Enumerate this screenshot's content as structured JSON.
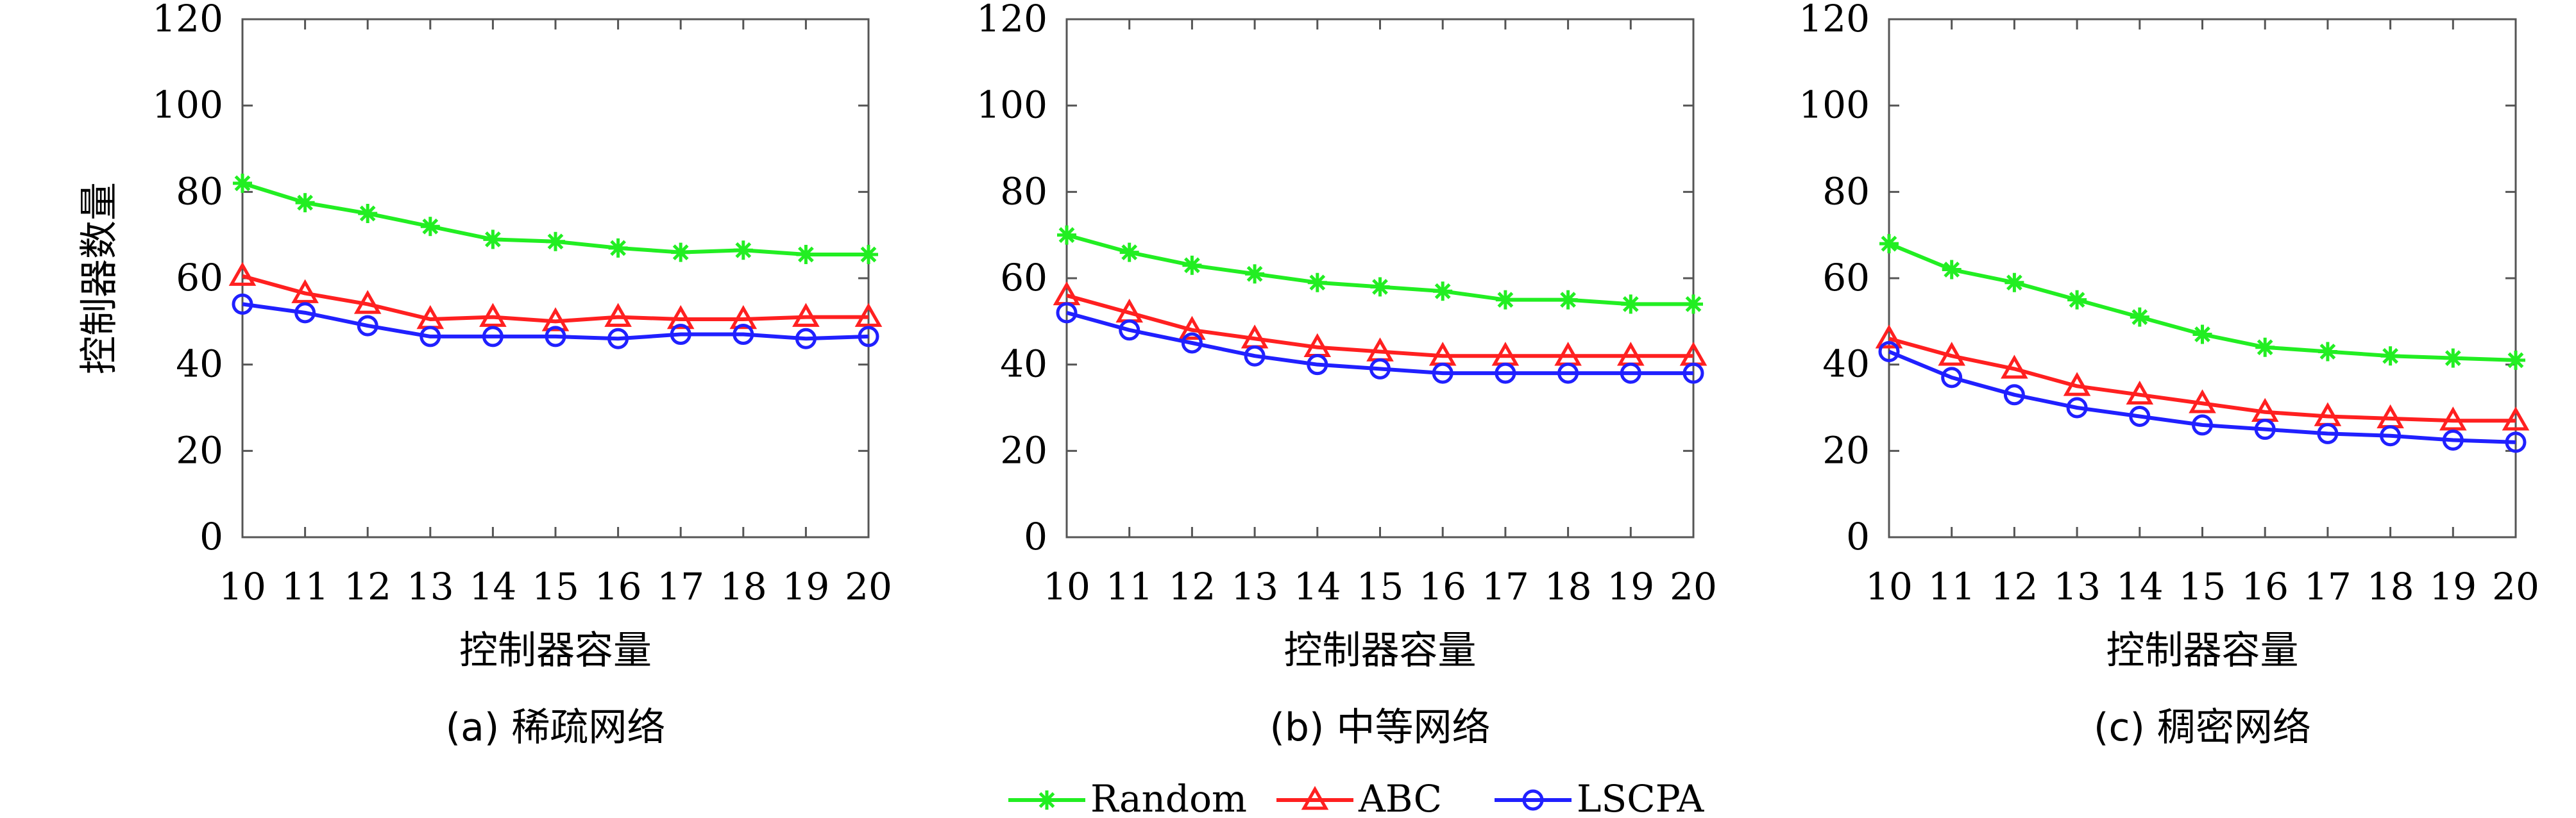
{
  "chart_data": [
    {
      "type": "line",
      "caption": "(a) 稀疏网络",
      "xlabel": "控制器容量",
      "ylabel": "控制器数量",
      "x": [
        10,
        11,
        12,
        13,
        14,
        15,
        16,
        17,
        18,
        19,
        20
      ],
      "ylim": [
        0,
        120
      ],
      "yticks": [
        0,
        20,
        40,
        60,
        80,
        100,
        120
      ],
      "grid": false,
      "series": [
        {
          "name": "Random",
          "color": "#22ee22",
          "marker": "asterisk",
          "values": [
            82,
            77.5,
            75,
            72,
            69,
            68.5,
            67,
            66,
            66.5,
            65.5,
            65.5
          ]
        },
        {
          "name": "ABC",
          "color": "#ff2020",
          "marker": "triangle",
          "values": [
            60.5,
            56.5,
            54,
            50.5,
            51,
            50,
            51,
            50.5,
            50.5,
            51,
            51
          ]
        },
        {
          "name": "LSCPA",
          "color": "#2020ff",
          "marker": "circle",
          "values": [
            54,
            52,
            49,
            46.5,
            46.5,
            46.5,
            46,
            47,
            47,
            46,
            46.5
          ]
        }
      ]
    },
    {
      "type": "line",
      "caption": "(b) 中等网络",
      "xlabel": "控制器容量",
      "ylabel": "",
      "x": [
        10,
        11,
        12,
        13,
        14,
        15,
        16,
        17,
        18,
        19,
        20
      ],
      "ylim": [
        0,
        120
      ],
      "yticks": [
        0,
        20,
        40,
        60,
        80,
        100,
        120
      ],
      "grid": false,
      "series": [
        {
          "name": "Random",
          "color": "#22ee22",
          "marker": "asterisk",
          "values": [
            70,
            66,
            63,
            61,
            59,
            58,
            57,
            55,
            55,
            54,
            54
          ]
        },
        {
          "name": "ABC",
          "color": "#ff2020",
          "marker": "triangle",
          "values": [
            56,
            52,
            48,
            46,
            44,
            43,
            42,
            42,
            42,
            42,
            42
          ]
        },
        {
          "name": "LSCPA",
          "color": "#2020ff",
          "marker": "circle",
          "values": [
            52,
            48,
            45,
            42,
            40,
            39,
            38,
            38,
            38,
            38,
            38
          ]
        }
      ]
    },
    {
      "type": "line",
      "caption": "(c) 稠密网络",
      "xlabel": "控制器容量",
      "ylabel": "",
      "x": [
        10,
        11,
        12,
        13,
        14,
        15,
        16,
        17,
        18,
        19,
        20
      ],
      "ylim": [
        0,
        120
      ],
      "yticks": [
        0,
        20,
        40,
        60,
        80,
        100,
        120
      ],
      "grid": false,
      "series": [
        {
          "name": "Random",
          "color": "#22ee22",
          "marker": "asterisk",
          "values": [
            68,
            62,
            59,
            55,
            51,
            47,
            44,
            43,
            42,
            41.5,
            41
          ]
        },
        {
          "name": "ABC",
          "color": "#ff2020",
          "marker": "triangle",
          "values": [
            46,
            42,
            39,
            35,
            33,
            31,
            29,
            28,
            27.5,
            27,
            27
          ]
        },
        {
          "name": "LSCPA",
          "color": "#2020ff",
          "marker": "circle",
          "values": [
            43,
            37,
            33,
            30,
            28,
            26,
            25,
            24,
            23.5,
            22.5,
            22
          ]
        }
      ]
    }
  ],
  "legend": {
    "placement": "bottom-center",
    "entries": [
      {
        "label": "Random",
        "color": "#22ee22",
        "marker": "asterisk"
      },
      {
        "label": "ABC",
        "color": "#ff2020",
        "marker": "triangle"
      },
      {
        "label": "LSCPA",
        "color": "#2020ff",
        "marker": "circle"
      }
    ]
  }
}
